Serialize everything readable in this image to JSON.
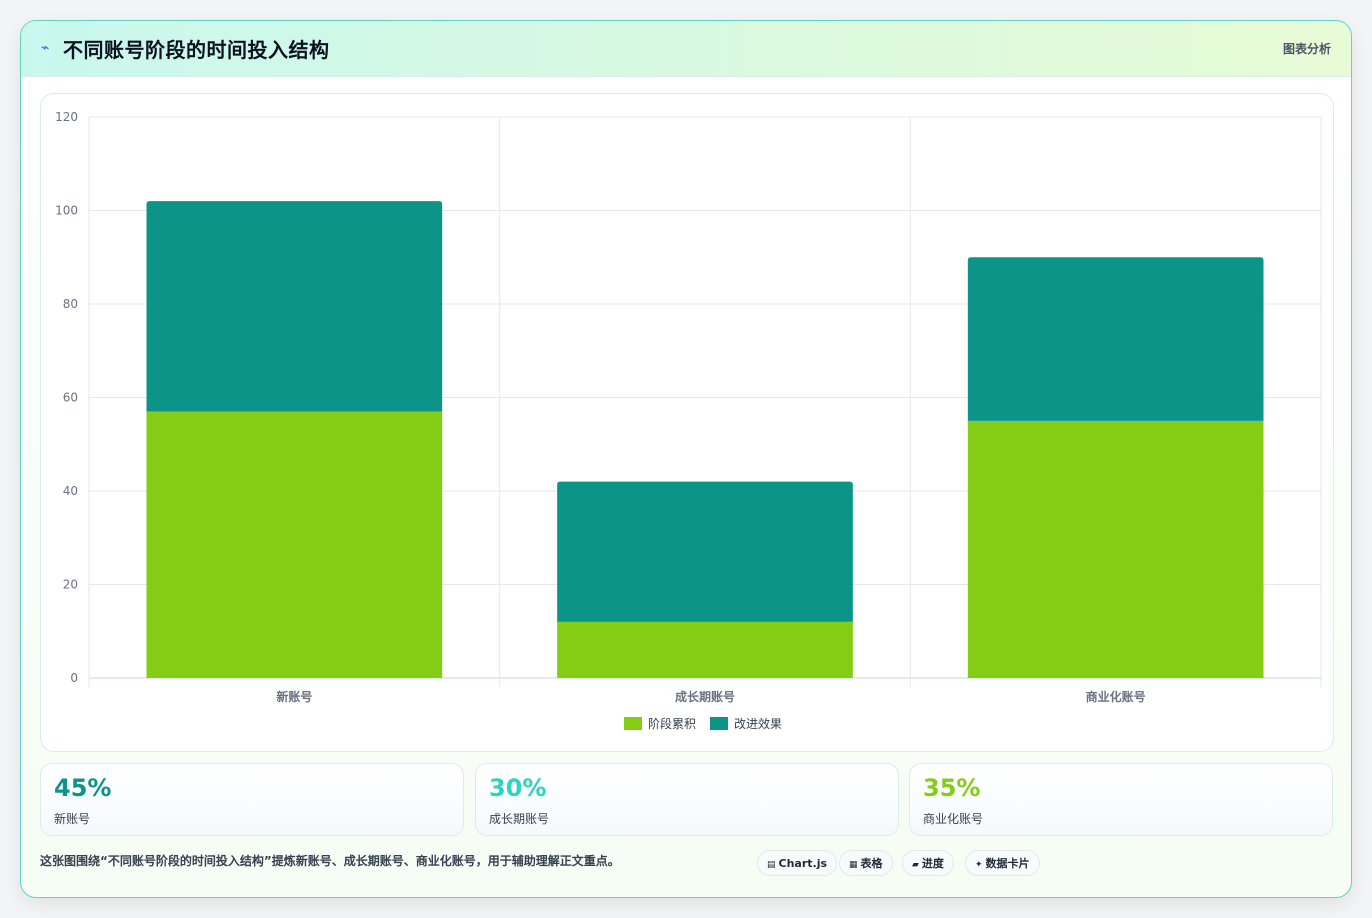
{
  "header": {
    "title": "不同账号阶段的时间投入结构",
    "tag": "图表分析",
    "icon": "lightning-icon"
  },
  "chart_data": {
    "type": "bar",
    "stacked": true,
    "categories": [
      "新账号",
      "成长期账号",
      "商业化账号"
    ],
    "series": [
      {
        "name": "阶段累积",
        "values": [
          57,
          12,
          55
        ],
        "color": "#84cc16"
      },
      {
        "name": "改进效果",
        "values": [
          45,
          30,
          35
        ],
        "color": "#0d9488"
      }
    ],
    "ylim": [
      0,
      120
    ],
    "yticks": [
      0,
      20,
      40,
      60,
      80,
      100,
      120
    ],
    "grid": true,
    "legend": "bottom"
  },
  "stats": [
    {
      "value": "45%",
      "label": "新账号",
      "color": "#0d9488"
    },
    {
      "value": "30%",
      "label": "成长期账号",
      "color": "#2dd4bf"
    },
    {
      "value": "35%",
      "label": "商业化账号",
      "color": "#84cc16"
    }
  ],
  "caption": "这张图围绕“不同账号阶段的时间投入结构”提炼新账号、成长期账号、商业化账号，用于辅助理解正文重点。",
  "chips": [
    {
      "icon": "▤",
      "label": "Chart.js"
    },
    {
      "icon": "▦",
      "label": "表格"
    },
    {
      "icon": "▰",
      "label": "进度"
    },
    {
      "icon": "✦",
      "label": "数据卡片"
    }
  ]
}
